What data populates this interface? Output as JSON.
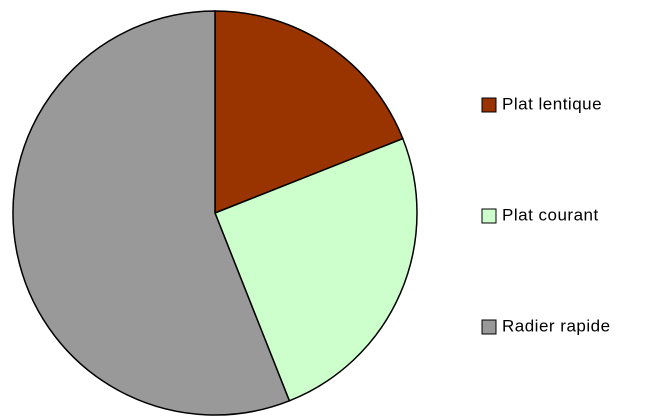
{
  "chart_data": {
    "type": "pie",
    "categories": [
      "Plat lentique",
      "Plat courant",
      "Radier rapide"
    ],
    "values": [
      19,
      25,
      56
    ],
    "colors": [
      "#993300",
      "#ccffcc",
      "#999999"
    ],
    "legend": "right"
  }
}
